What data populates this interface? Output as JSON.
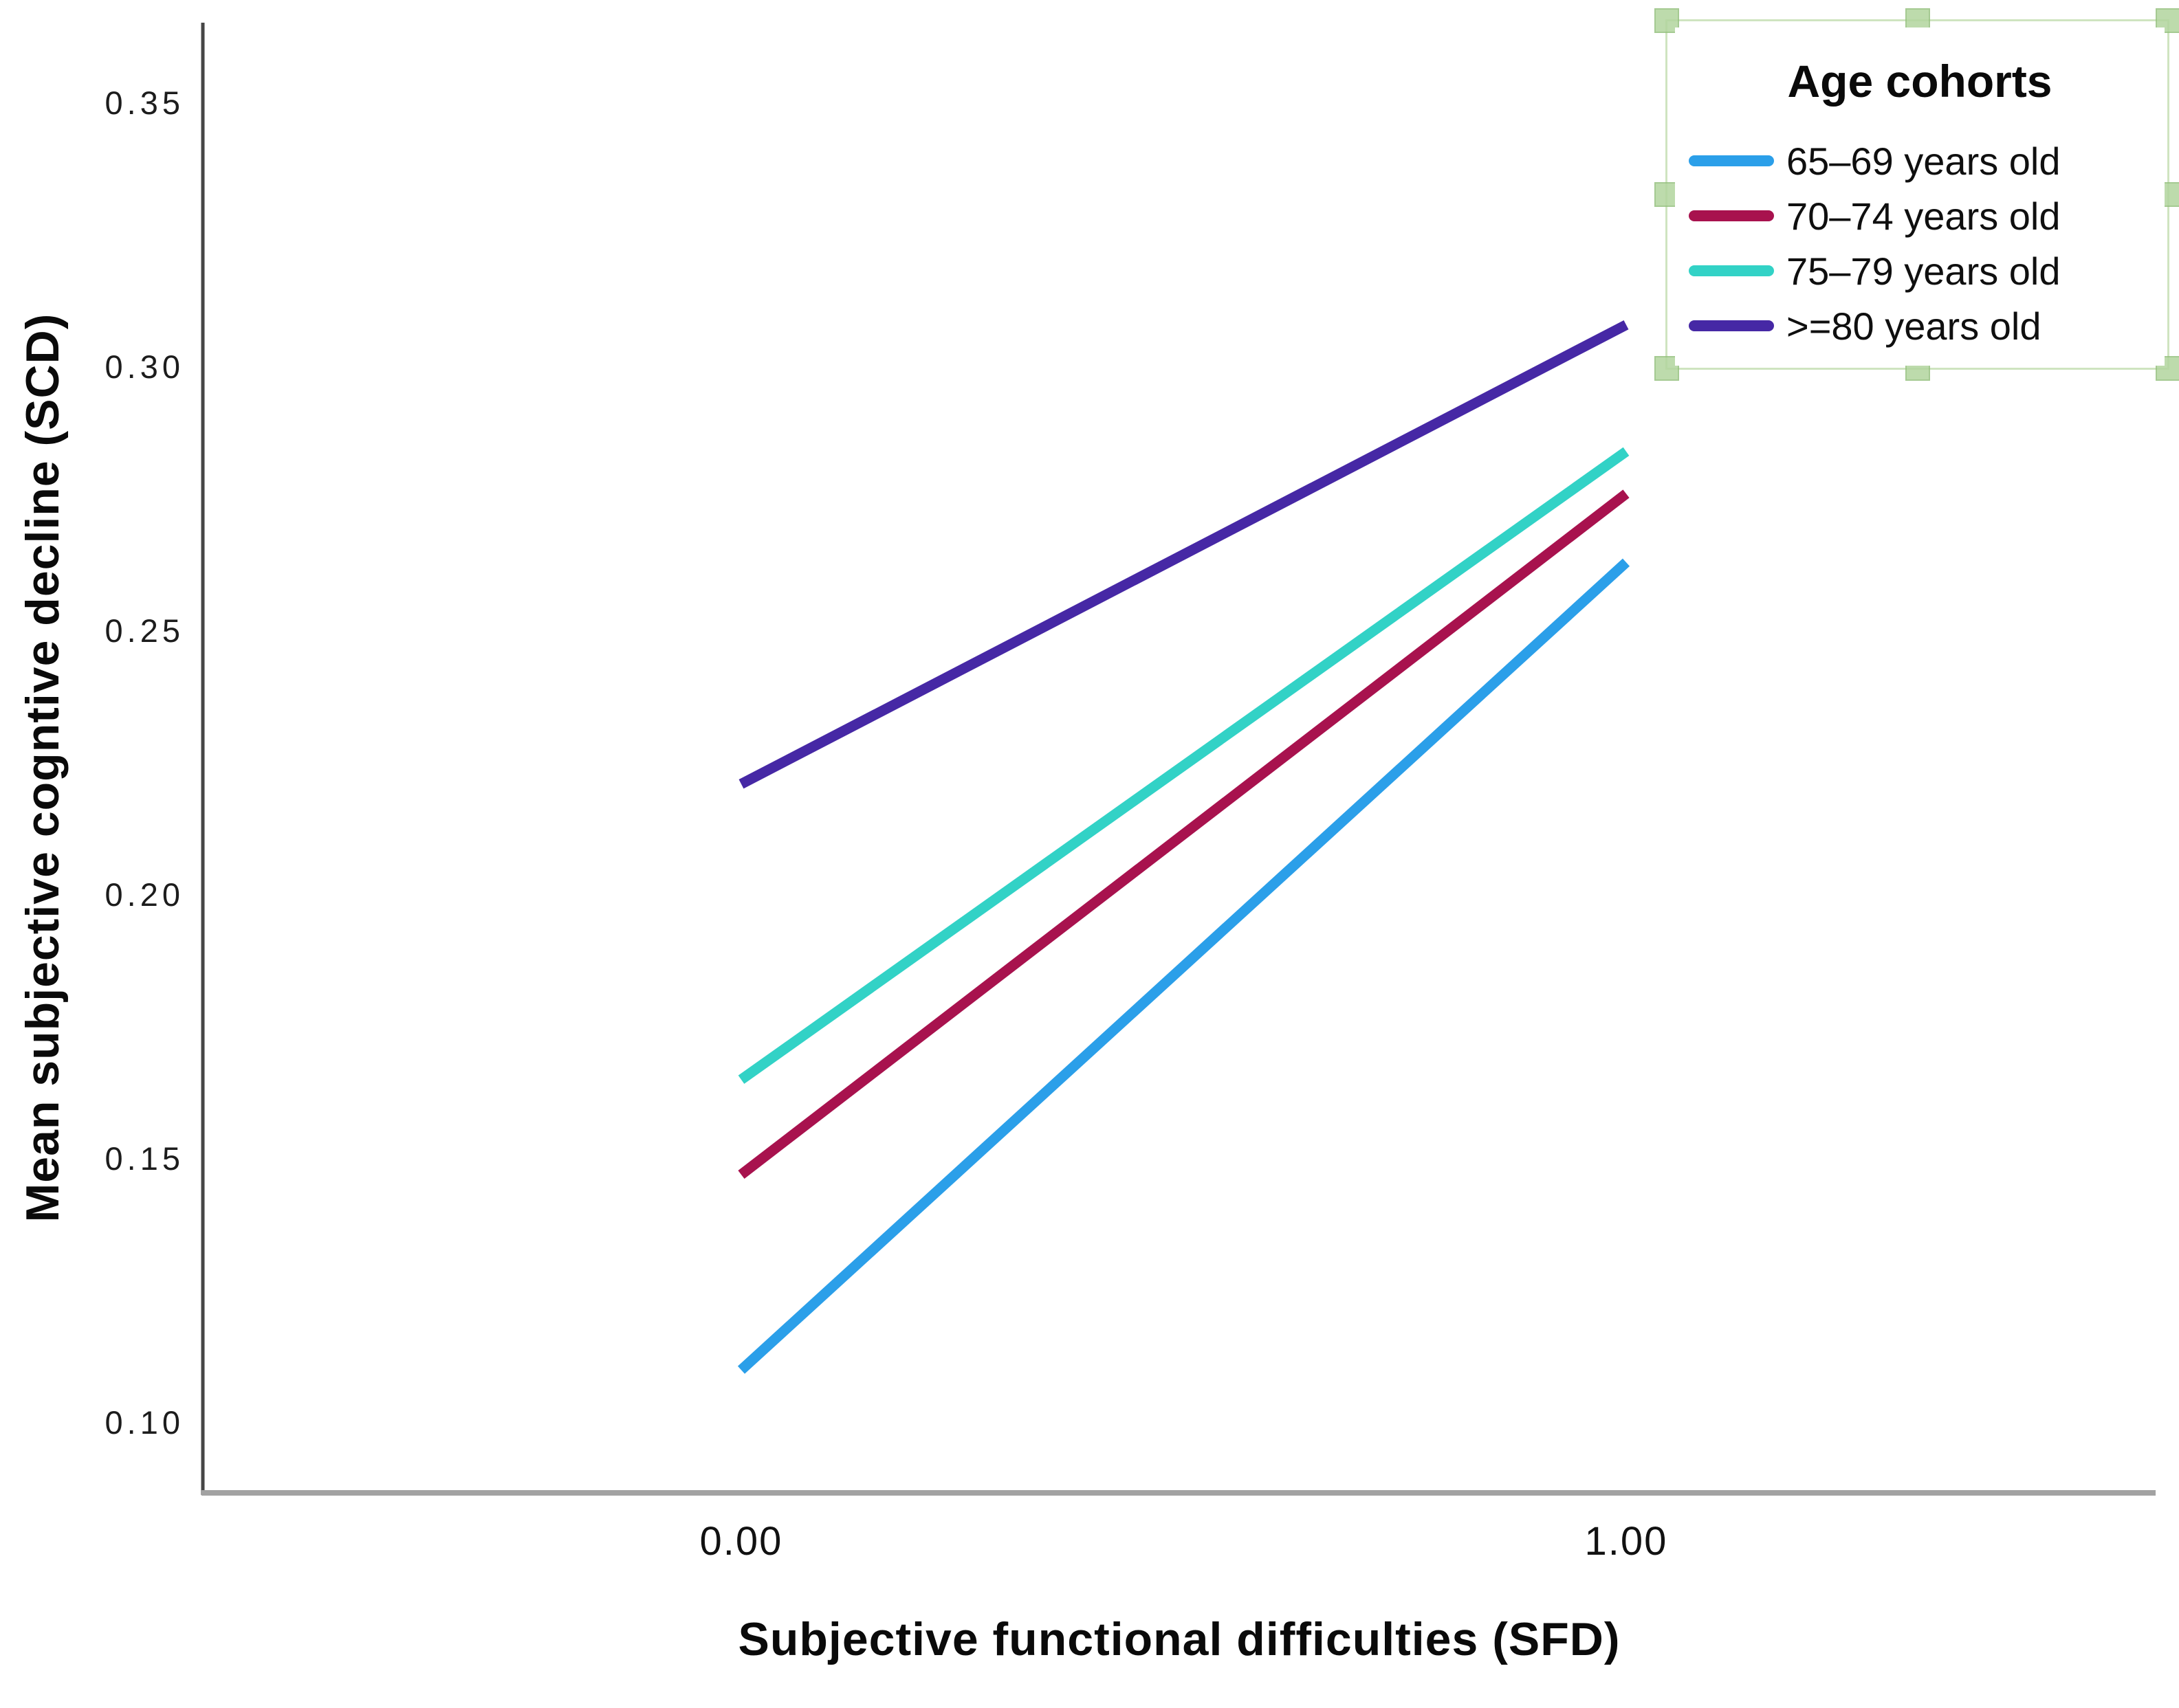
{
  "chart_data": {
    "type": "line",
    "title": "",
    "xlabel": "Subjective functional difficulties (SFD)",
    "ylabel": "Mean subjective cogntive decline (SCD)",
    "categories": [
      "0.00",
      "1.00"
    ],
    "x_values": [
      0,
      1
    ],
    "series": [
      {
        "name": "65–69 years old",
        "color": "#2B9FE9",
        "values": [
          0.11,
          0.263
        ]
      },
      {
        "name": "70–74 years old",
        "color": "#A8124E",
        "values": [
          0.147,
          0.276
        ]
      },
      {
        "name": "75–79 years old",
        "color": "#32D2C6",
        "values": [
          0.165,
          0.284
        ]
      },
      {
        "name": ">=80 years old",
        "color": "#4628A5",
        "values": [
          0.221,
          0.308
        ]
      }
    ],
    "yticks": [
      "0.35",
      "0.30",
      "0.25",
      "0.20",
      "0.15",
      "0.10"
    ],
    "ylim": [
      0.087,
      0.365
    ],
    "grid": false,
    "legend": {
      "title": "Age cohorts",
      "position": "top-right",
      "selected": true
    }
  }
}
